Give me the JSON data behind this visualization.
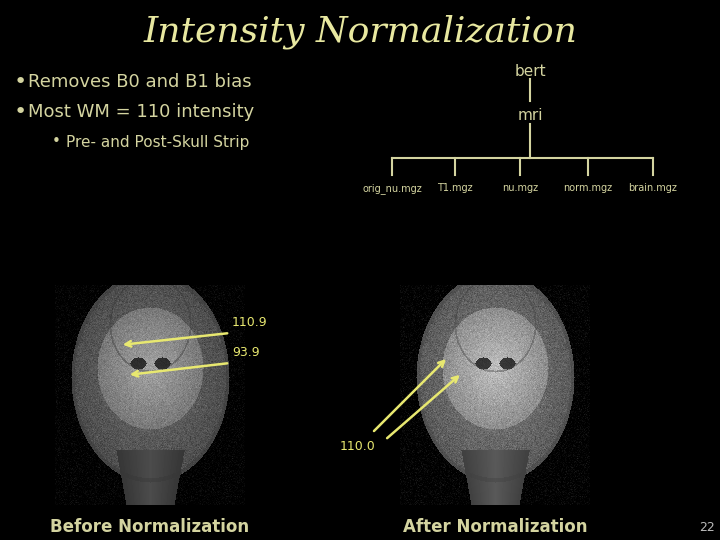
{
  "title": "Intensity Normalization",
  "title_color": "#e8e8a0",
  "title_fontsize": 26,
  "background_color": "#000000",
  "text_color": "#d4d4a0",
  "bullet1": "Removes B0 and B1 bias",
  "bullet2": "Most WM = 110 intensity",
  "bullet3": "Pre- and Post-Skull Strip",
  "tree_root": "bert",
  "tree_child": "mri",
  "tree_leaves": [
    "orig_nu.mgz",
    "T1.mgz",
    "nu.mgz",
    "norm.mgz",
    "brain.mgz"
  ],
  "label_before": "Before Normalization",
  "label_after": "After Normalization",
  "arrow_labels": [
    "110.9",
    "93.9",
    "110.0"
  ],
  "page_number": "22",
  "arrow_color": "#e8e870",
  "text_color_main": "#d4d490"
}
